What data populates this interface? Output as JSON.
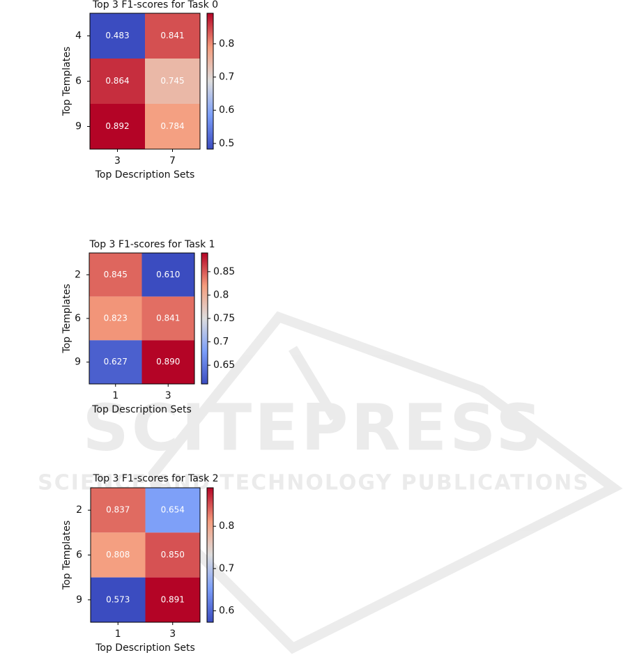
{
  "watermark": {
    "title": "SCITEPRESS",
    "subtitle": "SCIENCE AND TECHNOLOGY PUBLICATIONS"
  },
  "chart_data": [
    {
      "type": "heatmap",
      "title": "Top 3 F1-scores for Task 0",
      "x_label": "Top Description Sets",
      "y_label": "Top Templates",
      "x_categories": [
        "3",
        "7"
      ],
      "y_categories": [
        "4",
        "6",
        "9"
      ],
      "values": [
        [
          0.483,
          0.841
        ],
        [
          0.864,
          0.745
        ],
        [
          0.892,
          0.784
        ]
      ],
      "value_labels": [
        [
          "0.483",
          "0.841"
        ],
        [
          "0.864",
          "0.745"
        ],
        [
          "0.892",
          "0.784"
        ]
      ],
      "colormap": "coolwarm",
      "clim": [
        0.483,
        0.892
      ],
      "cticks": [
        0.5,
        0.6,
        0.7,
        0.8
      ]
    },
    {
      "type": "heatmap",
      "title": "Top 3 F1-scores for Task 1",
      "x_label": "Top Description Sets",
      "y_label": "Top Templates",
      "x_categories": [
        "1",
        "3"
      ],
      "y_categories": [
        "2",
        "6",
        "9"
      ],
      "values": [
        [
          0.845,
          0.61
        ],
        [
          0.823,
          0.841
        ],
        [
          0.627,
          0.89
        ]
      ],
      "value_labels": [
        [
          "0.845",
          "0.610"
        ],
        [
          "0.823",
          "0.841"
        ],
        [
          "0.627",
          "0.890"
        ]
      ],
      "colormap": "coolwarm",
      "clim": [
        0.61,
        0.89
      ],
      "cticks": [
        0.65,
        0.7,
        0.75,
        0.8,
        0.85
      ]
    },
    {
      "type": "heatmap",
      "title": "Top 3 F1-scores for Task 2",
      "x_label": "Top Description Sets",
      "y_label": "Top Templates",
      "x_categories": [
        "1",
        "3"
      ],
      "y_categories": [
        "2",
        "6",
        "9"
      ],
      "values": [
        [
          0.837,
          0.654
        ],
        [
          0.808,
          0.85
        ],
        [
          0.573,
          0.891
        ]
      ],
      "value_labels": [
        [
          "0.837",
          "0.654"
        ],
        [
          "0.808",
          "0.850"
        ],
        [
          "0.573",
          "0.891"
        ]
      ],
      "colormap": "coolwarm",
      "clim": [
        0.573,
        0.891
      ],
      "cticks": [
        0.6,
        0.7,
        0.8
      ]
    }
  ]
}
